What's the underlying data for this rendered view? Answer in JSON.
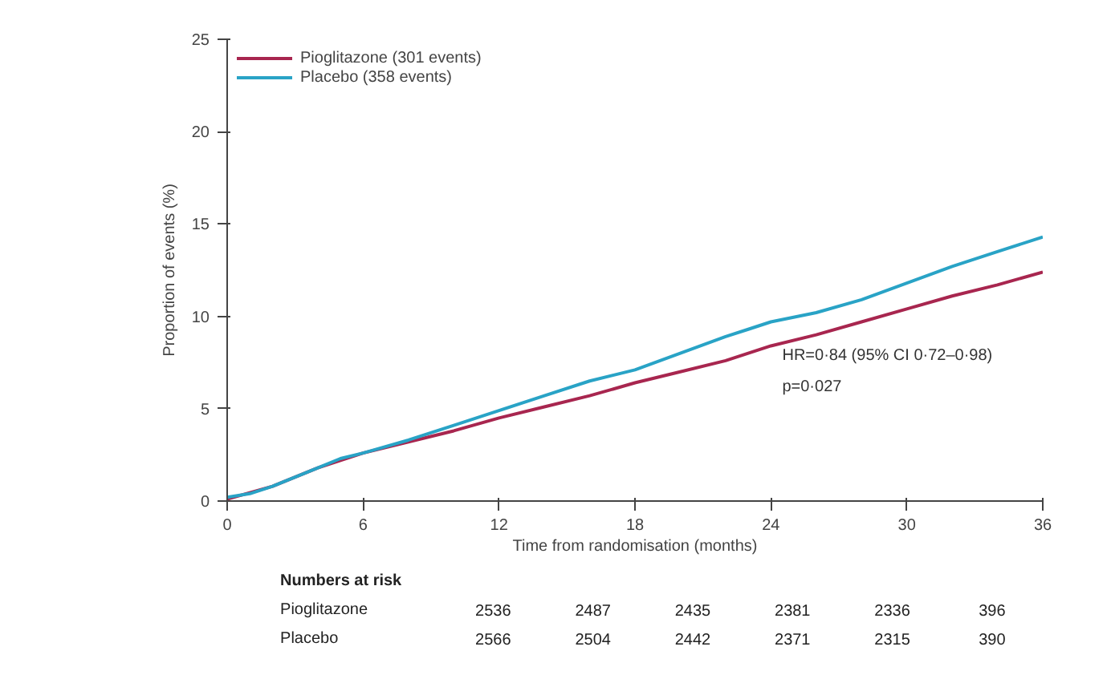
{
  "chart_data": {
    "type": "line",
    "xlabel": "Time from randomisation (months)",
    "ylabel": "Proportion of events (%)",
    "xlim": [
      0,
      36
    ],
    "xticks": [
      0,
      6,
      12,
      18,
      24,
      30,
      36
    ],
    "ylim": [
      0,
      25
    ],
    "yticks": [
      0,
      5,
      10,
      15,
      20,
      25
    ],
    "grid": false,
    "legend": "top left",
    "line_style": "solid",
    "marker": "none",
    "series": [
      {
        "name": "Pioglitazone (301 events)",
        "color": "#a8264f",
        "x": [
          0,
          2,
          4,
          6,
          8,
          10,
          12,
          14,
          16,
          18,
          20,
          22,
          24,
          26,
          28,
          30,
          32,
          34,
          36
        ],
        "values": [
          0.1,
          0.8,
          1.8,
          2.6,
          3.2,
          3.8,
          4.5,
          5.1,
          5.7,
          6.4,
          7.0,
          7.6,
          8.4,
          9.0,
          9.7,
          10.4,
          11.1,
          11.7,
          12.4
        ]
      },
      {
        "name": "Placebo (358 events)",
        "color": "#29a3c6",
        "x": [
          0,
          1,
          2,
          3,
          4,
          5,
          6,
          8,
          10,
          12,
          14,
          16,
          18,
          20,
          22,
          23,
          24,
          26,
          28,
          30,
          32,
          34,
          36
        ],
        "values": [
          0.2,
          0.4,
          0.8,
          1.3,
          1.8,
          2.3,
          2.6,
          3.3,
          4.1,
          4.9,
          5.7,
          6.5,
          7.1,
          8.0,
          8.9,
          9.3,
          9.7,
          10.2,
          10.9,
          11.8,
          12.7,
          13.5,
          14.3
        ]
      }
    ],
    "annotations": [
      "HR=0·84 (95% CI 0·72–0·98)",
      "p=0·027",
      "Numbers at risk",
      "Pioglitazone",
      "2536",
      "2487",
      "2435",
      "2381",
      "2336",
      "396",
      "Placebo",
      "2566",
      "2504",
      "2442",
      "2371",
      "2315",
      "390"
    ]
  }
}
